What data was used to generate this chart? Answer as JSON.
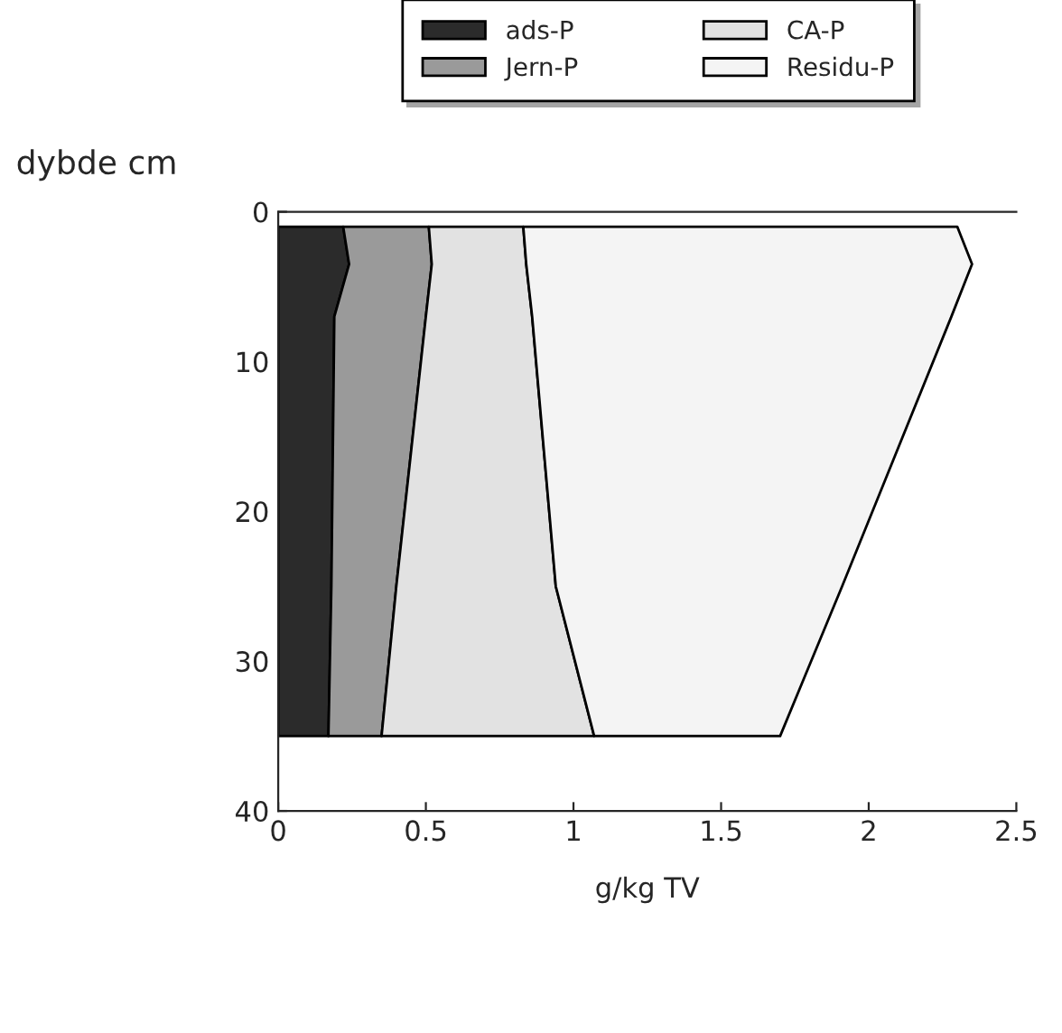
{
  "chart_data": {
    "type": "area",
    "orientation": "horizontal",
    "stacked": true,
    "xlabel": "g/kg TV",
    "ylabel": "dybde cm",
    "x": [
      1,
      3.5,
      7,
      25,
      35
    ],
    "series": [
      {
        "name": "ads-P",
        "color": "#2b2b2b",
        "values": [
          0.22,
          0.24,
          0.19,
          0.18,
          0.17
        ]
      },
      {
        "name": "Jern-P",
        "color": "#9a9a9a",
        "values": [
          0.29,
          0.28,
          0.31,
          0.22,
          0.18
        ]
      },
      {
        "name": "CA-P",
        "color": "#e2e2e2",
        "values": [
          0.32,
          0.32,
          0.36,
          0.54,
          0.72
        ]
      },
      {
        "name": "Residu-P",
        "color": "#f4f4f4",
        "values": [
          1.47,
          1.51,
          1.42,
          0.97,
          0.63
        ]
      }
    ],
    "xlim": [
      0,
      2.5
    ],
    "xticks": [
      0,
      0.5,
      1,
      1.5,
      2,
      2.5
    ],
    "ylim": [
      40,
      0
    ],
    "yticks": [
      0,
      10,
      20,
      30,
      40
    ],
    "grid": false,
    "legend": "top"
  }
}
